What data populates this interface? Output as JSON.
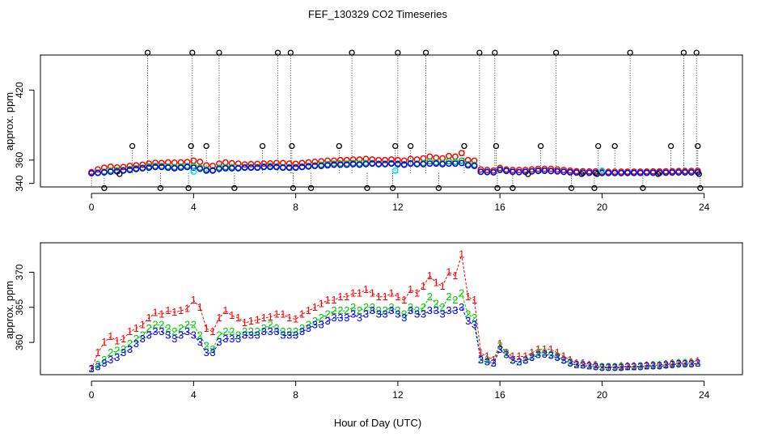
{
  "title": "FEF_130329  CO2 Timeseries",
  "xlabel": "Hour of Day (UTC)",
  "colors": {
    "red": "#ff0000",
    "green": "#00cc00",
    "blue": "#0000ff",
    "cyan": "#00e5ee",
    "black": "#000000"
  },
  "chart_data": [
    {
      "type": "scatter",
      "panel": "top",
      "title": "FEF_130329  CO2 Timeseries",
      "xlabel": "",
      "ylabel": "approx. ppm",
      "xlim": [
        -2,
        25.5
      ],
      "ylim": [
        337,
        450
      ],
      "xticks": [
        0,
        4,
        8,
        12,
        16,
        20,
        24
      ],
      "yticks": [
        340,
        360,
        420
      ],
      "grid": false,
      "outlier_x": [
        0.5,
        1.1,
        1.6,
        2.2,
        2.7,
        3.8,
        3.9,
        3.95,
        4.5,
        5.0,
        5.6,
        6.7,
        7.3,
        7.8,
        7.85,
        7.9,
        8.6,
        9.7,
        10.2,
        10.8,
        11.8,
        11.9,
        12.0,
        12.5,
        13.1,
        13.6,
        14.6,
        15.2,
        15.8,
        15.85,
        15.9,
        16.5,
        17.1,
        17.6,
        18.2,
        18.8,
        19.2,
        19.7,
        19.8,
        19.85,
        20.5,
        21.1,
        21.6,
        22.2,
        22.7,
        23.2,
        23.7,
        23.75,
        23.8,
        23.85
      ],
      "outlier_y": [
        336,
        348,
        372,
        452,
        336,
        336,
        372,
        452,
        372,
        452,
        336,
        372,
        452,
        452,
        372,
        336,
        336,
        372,
        452,
        336,
        336,
        372,
        452,
        372,
        452,
        336,
        372,
        452,
        452,
        372,
        336,
        336,
        348,
        372,
        452,
        336,
        348,
        336,
        348,
        372,
        372,
        452,
        336,
        348,
        372,
        452,
        452,
        372,
        348,
        336
      ],
      "cyan_x": [
        4.0,
        11.9,
        20.0
      ],
      "cyan_y": [
        350,
        351,
        351
      ],
      "series": [
        {
          "key": "1",
          "color": "red"
        },
        {
          "key": "2",
          "color": "green"
        },
        {
          "key": "3",
          "color": "blue"
        }
      ]
    },
    {
      "type": "line",
      "panel": "bottom",
      "title": "",
      "xlabel": "Hour of Day (UTC)",
      "ylabel": "approx. ppm",
      "xlim": [
        -2,
        25.5
      ],
      "ylim": [
        355.4,
        374.2
      ],
      "xticks": [
        0,
        4,
        8,
        12,
        16,
        20,
        24
      ],
      "yticks": [
        360,
        365,
        370
      ],
      "grid": false,
      "x": [
        0.0,
        0.25,
        0.5,
        0.75,
        1.0,
        1.25,
        1.5,
        1.75,
        2.0,
        2.25,
        2.5,
        2.75,
        3.0,
        3.25,
        3.5,
        3.75,
        4.0,
        4.25,
        4.5,
        4.75,
        5.0,
        5.25,
        5.5,
        5.75,
        6.0,
        6.25,
        6.5,
        6.75,
        7.0,
        7.25,
        7.5,
        7.75,
        8.0,
        8.25,
        8.5,
        8.75,
        9.0,
        9.25,
        9.5,
        9.75,
        10.0,
        10.25,
        10.5,
        10.75,
        11.0,
        11.25,
        11.5,
        11.75,
        12.0,
        12.25,
        12.5,
        12.75,
        13.0,
        13.25,
        13.5,
        13.75,
        14.0,
        14.25,
        14.5,
        14.75,
        15.0,
        15.25,
        15.5,
        15.75,
        16.0,
        16.25,
        16.5,
        16.75,
        17.0,
        17.25,
        17.5,
        17.75,
        18.0,
        18.25,
        18.5,
        18.75,
        19.0,
        19.25,
        19.5,
        19.75,
        20.0,
        20.25,
        20.5,
        20.75,
        21.0,
        21.25,
        21.5,
        21.75,
        22.0,
        22.25,
        22.5,
        22.75,
        23.0,
        23.25,
        23.5,
        23.75
      ],
      "series_values": [
        [
          356.2,
          358.5,
          360.0,
          360.8,
          360.2,
          360.5,
          361.5,
          362.0,
          362.5,
          363.5,
          364.2,
          364.0,
          364.5,
          364.3,
          364.5,
          364.8,
          366.0,
          365.0,
          362.0,
          361.5,
          363.5,
          364.5,
          363.8,
          363.5,
          362.8,
          363.0,
          363.2,
          363.5,
          363.6,
          364.0,
          364.0,
          363.5,
          363.3,
          364.0,
          364.5,
          365.0,
          365.5,
          366.0,
          366.0,
          366.5,
          366.5,
          367.0,
          367.0,
          367.5,
          367.0,
          366.5,
          366.5,
          367.0,
          366.5,
          366.0,
          367.5,
          367.0,
          368.0,
          369.5,
          368.5,
          368.0,
          370.0,
          369.5,
          372.5,
          366.5,
          366.0,
          358.5,
          358.0,
          357.5,
          359.8,
          358.5,
          358.0,
          358.0,
          358.0,
          358.5,
          359.0,
          359.0,
          359.0,
          358.5,
          358.0,
          357.5,
          357.0,
          357.0,
          356.8,
          356.8,
          356.5,
          356.5,
          356.5,
          356.6,
          356.6,
          356.6,
          356.6,
          356.7,
          356.8,
          356.8,
          356.9,
          357.0,
          357.1,
          357.1,
          357.2,
          357.3
        ],
        [
          356.2,
          356.8,
          357.5,
          358.5,
          358.8,
          359.0,
          359.8,
          360.5,
          361.0,
          362.0,
          362.5,
          362.5,
          362.0,
          361.5,
          362.0,
          362.5,
          362.5,
          361.0,
          359.5,
          359.0,
          361.0,
          361.5,
          361.5,
          361.0,
          361.5,
          361.5,
          361.5,
          362.0,
          362.5,
          362.0,
          361.5,
          361.5,
          361.5,
          362.0,
          362.5,
          363.0,
          363.5,
          364.0,
          364.5,
          364.5,
          364.5,
          365.0,
          364.5,
          365.0,
          365.0,
          364.5,
          364.5,
          365.0,
          364.5,
          364.0,
          365.0,
          364.5,
          365.0,
          366.5,
          365.5,
          365.0,
          366.5,
          366.0,
          367.0,
          364.0,
          363.5,
          357.5,
          357.5,
          357.0,
          359.5,
          358.5,
          357.5,
          357.2,
          357.5,
          358.0,
          358.5,
          358.5,
          358.2,
          358.0,
          357.5,
          357.2,
          356.8,
          356.8,
          356.6,
          356.6,
          356.5,
          356.5,
          356.5,
          356.5,
          356.5,
          356.5,
          356.6,
          356.6,
          356.7,
          356.7,
          356.8,
          356.9,
          357.0,
          357.0,
          357.0,
          357.0
        ],
        [
          356.2,
          356.5,
          357.0,
          357.5,
          357.8,
          358.5,
          359.0,
          359.8,
          360.5,
          361.0,
          361.5,
          361.5,
          361.0,
          360.5,
          361.0,
          361.5,
          361.0,
          360.0,
          358.5,
          358.5,
          360.0,
          360.5,
          360.5,
          360.5,
          361.0,
          361.0,
          361.0,
          361.5,
          361.5,
          361.5,
          361.0,
          361.0,
          361.0,
          361.5,
          362.0,
          362.5,
          362.5,
          363.0,
          363.5,
          363.5,
          363.5,
          364.0,
          363.5,
          364.0,
          364.5,
          364.0,
          364.0,
          364.5,
          364.0,
          363.5,
          364.5,
          364.0,
          364.0,
          364.5,
          364.5,
          364.0,
          364.5,
          364.5,
          365.0,
          363.0,
          362.5,
          357.5,
          357.2,
          357.0,
          359.0,
          358.2,
          357.4,
          357.2,
          357.4,
          357.8,
          358.2,
          358.3,
          358.1,
          357.8,
          357.4,
          357.0,
          356.8,
          356.7,
          356.6,
          356.5,
          356.4,
          356.4,
          356.4,
          356.4,
          356.5,
          356.5,
          356.5,
          356.6,
          356.6,
          356.6,
          356.7,
          356.8,
          356.9,
          356.9,
          356.9,
          357.0
        ]
      ]
    }
  ]
}
